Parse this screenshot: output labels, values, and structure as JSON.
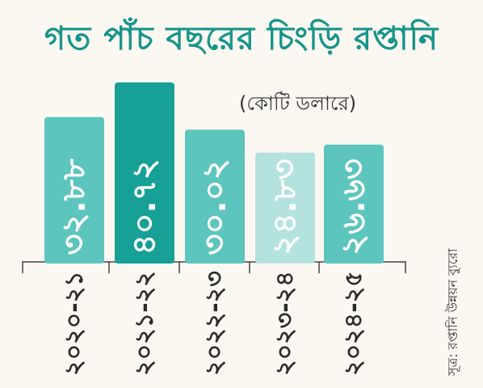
{
  "chart_data": {
    "type": "bar",
    "title": "গত পাঁচ বছরের চিংড়ি রপ্তানি",
    "unit_label": "(কোটি ডলারে)",
    "source": "সূত্র: রপ্তানি উন্নয়ন ব্যুরো",
    "categories": [
      "২০২০-২১",
      "২০২১-২২",
      "২০২২-২৩",
      "২০২৩-২৪",
      "২০২৪-২৫"
    ],
    "value_labels": [
      "৩২.৮৮",
      "৪০.৭২",
      "৩০.০২",
      "২৪.৮৩",
      "২৬.৬৩"
    ],
    "values": [
      32.88,
      40.72,
      30.02,
      24.83,
      26.63
    ],
    "highlight_index": 1,
    "colors": {
      "bar": "#5cc5bd",
      "bar_highlight": "#16a096",
      "bar_light": "#b4e3df",
      "title": "#16948b",
      "axis": "#444444"
    }
  }
}
